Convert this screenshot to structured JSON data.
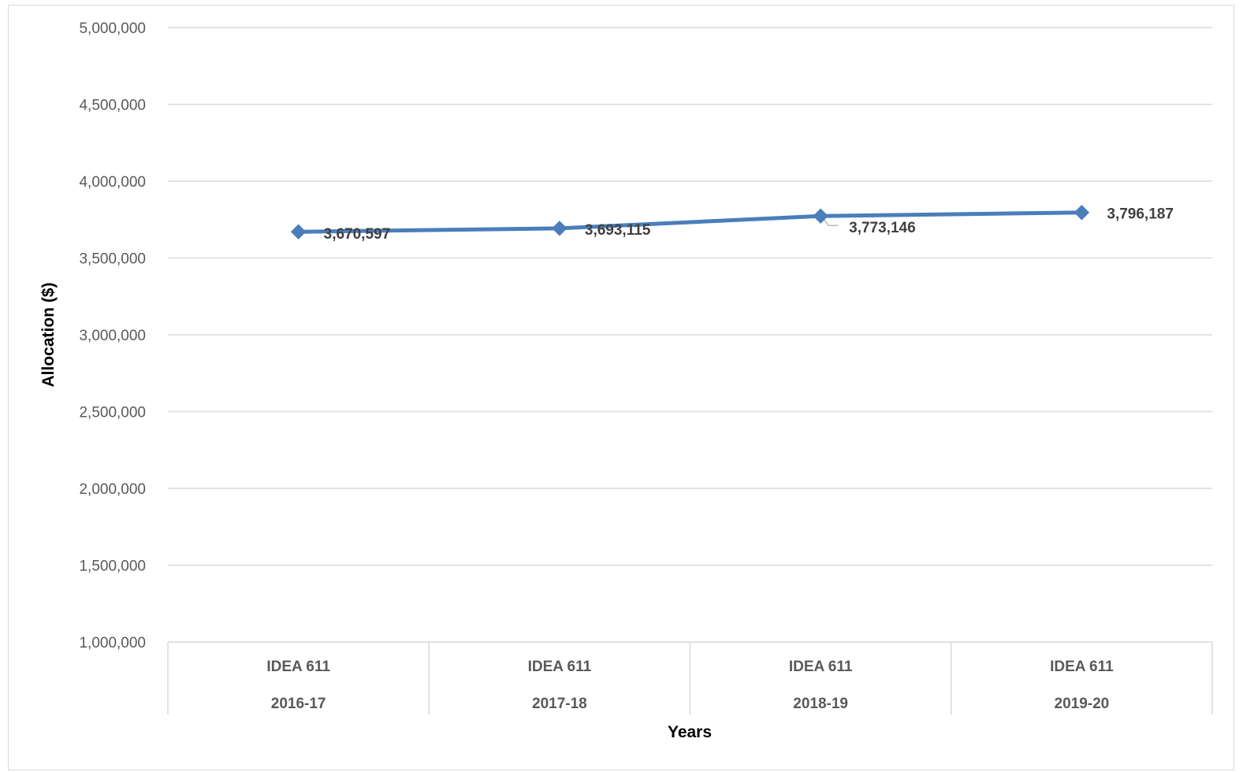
{
  "chart_data": {
    "type": "line",
    "title": "",
    "xlabel": "Years",
    "ylabel": "Allocation ($)",
    "ylim": [
      1000000,
      5000000
    ],
    "yticks": [
      1000000,
      1500000,
      2000000,
      2500000,
      3000000,
      3500000,
      4000000,
      4500000,
      5000000
    ],
    "ytick_labels": [
      "1,000,000",
      "1,500,000",
      "2,000,000",
      "2,500,000",
      "3,000,000",
      "3,500,000",
      "4,000,000",
      "4,500,000",
      "5,000,000"
    ],
    "categories": [
      {
        "group": "IDEA 611",
        "year": "2016-17"
      },
      {
        "group": "IDEA 611",
        "year": "2017-18"
      },
      {
        "group": "IDEA 611",
        "year": "2018-19"
      },
      {
        "group": "IDEA 611",
        "year": "2019-20"
      }
    ],
    "series": [
      {
        "values": [
          3670597,
          3693115,
          3773146,
          3796187
        ],
        "labels": [
          "3,670,597",
          "3,693,115",
          "3,773,146",
          "3,796,187"
        ],
        "color": "#4a7ebb",
        "marker": "diamond"
      }
    ],
    "grid": true,
    "legend": "none"
  }
}
